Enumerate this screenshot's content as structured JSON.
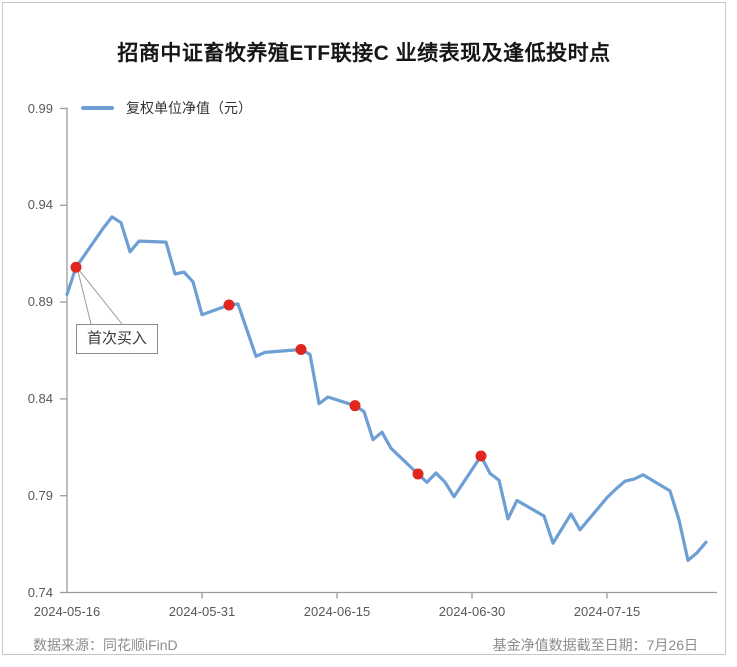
{
  "title": "招商中证畜牧养殖ETF联接C 业绩表现及逢低投时点",
  "legend": {
    "label": "复权单位净值（元）"
  },
  "annotation": {
    "label": "首次买入"
  },
  "footer": {
    "source": "数据来源：同花顺iFinD",
    "cutoff": "基金净值数据截至日期：7月26日"
  },
  "colors": {
    "line": "#6d9ed4",
    "marker": "#e1251f",
    "axis": "#9b9b9b",
    "leader": "#999999"
  },
  "chart_data": {
    "type": "line",
    "title": "招商中证畜牧养殖ETF联接C 业绩表现及逢低投时点",
    "series_name": "复权单位净值（元）",
    "ylim": [
      0.74,
      0.99
    ],
    "y_ticks": [
      "0.99",
      "0.94",
      "0.89",
      "0.84",
      "0.79",
      "0.74"
    ],
    "x_ticks": [
      "2024-05-16",
      "2024-05-31",
      "2024-06-15",
      "2024-06-30",
      "2024-07-15"
    ],
    "x": [
      "2024-05-16",
      "2024-05-17",
      "2024-05-20",
      "2024-05-21",
      "2024-05-22",
      "2024-05-23",
      "2024-05-24",
      "2024-05-27",
      "2024-05-28",
      "2024-05-29",
      "2024-05-30",
      "2024-05-31",
      "2024-06-03",
      "2024-06-04",
      "2024-06-05",
      "2024-06-06",
      "2024-06-07",
      "2024-06-11",
      "2024-06-12",
      "2024-06-13",
      "2024-06-14",
      "2024-06-17",
      "2024-06-18",
      "2024-06-19",
      "2024-06-20",
      "2024-06-21",
      "2024-06-24",
      "2024-06-25",
      "2024-06-26",
      "2024-06-27",
      "2024-06-28",
      "2024-07-01",
      "2024-07-02",
      "2024-07-03",
      "2024-07-04",
      "2024-07-05",
      "2024-07-08",
      "2024-07-09",
      "2024-07-10",
      "2024-07-11",
      "2024-07-12",
      "2024-07-15",
      "2024-07-16",
      "2024-07-17",
      "2024-07-18",
      "2024-07-19",
      "2024-07-22",
      "2024-07-23",
      "2024-07-24",
      "2024-07-25",
      "2024-07-26"
    ],
    "values": [
      0.894,
      0.908,
      0.928,
      0.934,
      0.931,
      0.916,
      0.9215,
      0.921,
      0.9045,
      0.9055,
      0.9005,
      0.8835,
      0.8885,
      0.889,
      0.8755,
      0.862,
      0.864,
      0.8655,
      0.863,
      0.8375,
      0.841,
      0.8365,
      0.8335,
      0.819,
      0.8228,
      0.8145,
      0.8012,
      0.7969,
      0.8017,
      0.797,
      0.7895,
      0.8105,
      0.8015,
      0.798,
      0.778,
      0.7875,
      0.7795,
      0.7655,
      0.773,
      0.7806,
      0.7724,
      0.789,
      0.7935,
      0.7975,
      0.7986,
      0.8008,
      0.7925,
      0.7775,
      0.7566,
      0.7605,
      0.766
    ],
    "markers": [
      {
        "date": "2024-05-17",
        "value": 0.908,
        "label": "首次买入"
      },
      {
        "date": "2024-06-03",
        "value": 0.8885
      },
      {
        "date": "2024-06-11",
        "value": 0.8655
      },
      {
        "date": "2024-06-17",
        "value": 0.8365
      },
      {
        "date": "2024-06-24",
        "value": 0.8012
      },
      {
        "date": "2024-07-01",
        "value": 0.8105
      }
    ]
  }
}
